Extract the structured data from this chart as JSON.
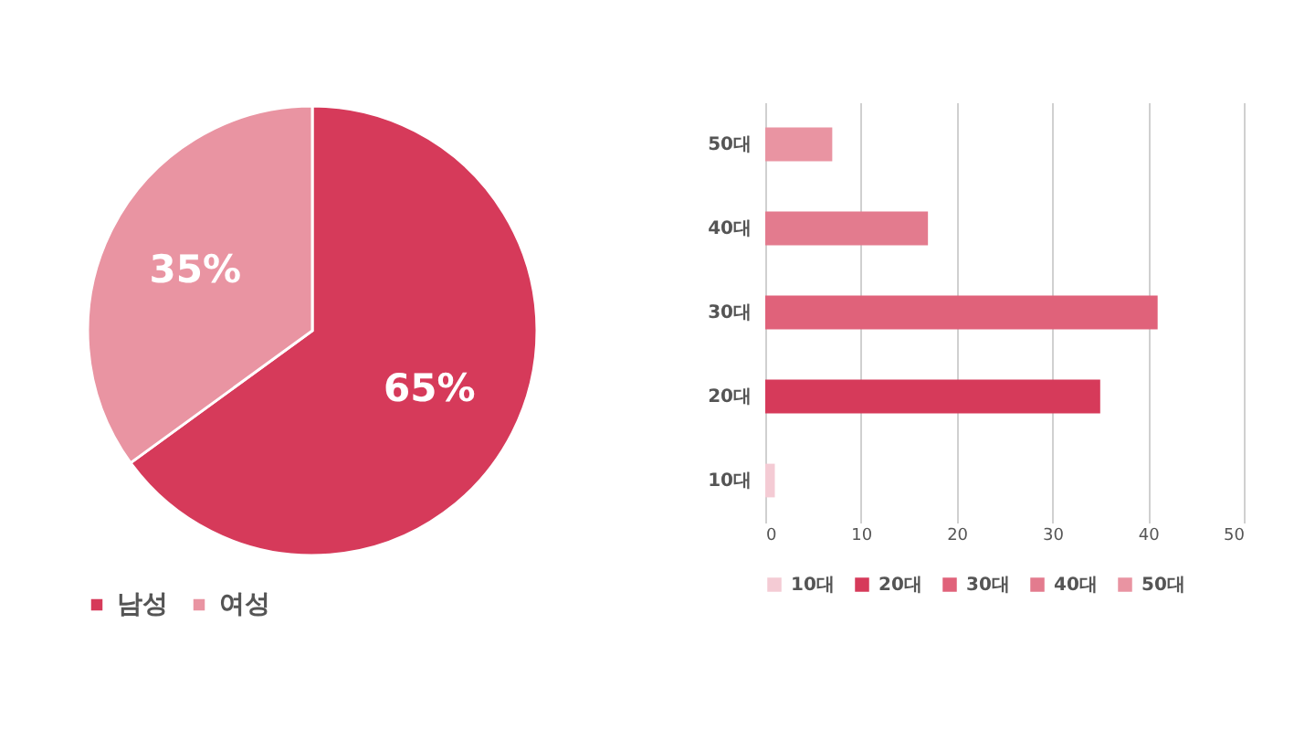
{
  "chart_data": [
    {
      "type": "pie",
      "categories": [
        "남성",
        "여성"
      ],
      "values": [
        65,
        35
      ],
      "colors": [
        "#d63a5a",
        "#e994a2"
      ],
      "value_labels": [
        "65%",
        "35%"
      ],
      "legend": "bottom"
    },
    {
      "type": "bar",
      "orientation": "horizontal",
      "categories": [
        "50대",
        "40대",
        "30대",
        "20대",
        "10대"
      ],
      "series": [
        {
          "name": "10대",
          "color": "#f4cbd4",
          "values": [
            null,
            null,
            null,
            null,
            1
          ]
        },
        {
          "name": "20대",
          "color": "#d63a5a",
          "values": [
            null,
            null,
            null,
            35,
            null
          ]
        },
        {
          "name": "30대",
          "color": "#e0627a",
          "values": [
            null,
            null,
            41,
            null,
            null
          ]
        },
        {
          "name": "40대",
          "color": "#e37b8e",
          "values": [
            null,
            17,
            null,
            null,
            null
          ]
        },
        {
          "name": "50대",
          "color": "#e994a2",
          "values": [
            7,
            null,
            null,
            null,
            null
          ]
        }
      ],
      "xlim": [
        0,
        50
      ],
      "xticks": [
        0,
        10,
        20,
        30,
        40,
        50
      ],
      "grid": "x",
      "legend": "bottom"
    }
  ]
}
